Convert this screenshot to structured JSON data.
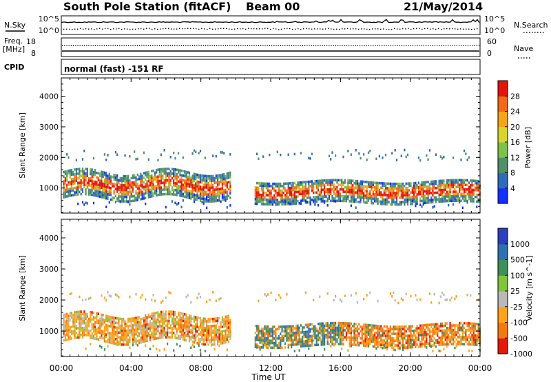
{
  "header": {
    "station": "South Pole Station (fitACF)",
    "beam": "Beam 00",
    "date": "21/May/2014"
  },
  "top_panels": {
    "nsky_label": "N.Sky",
    "nsky_ticks": [
      "10^5",
      "10^0"
    ],
    "nsearch_label": "N.Search",
    "nsearch_ticks": [
      "10^5",
      "10^0"
    ],
    "freq_label_line1": "Freq.",
    "freq_label_line2": "[MHz]",
    "freq_ticks": [
      "18",
      "8"
    ],
    "nave_label": "Nave",
    "nave_ticks": [
      "60",
      "0"
    ],
    "cpid_label": "CPID",
    "cpid_text": "normal (fast) -151 RF"
  },
  "chart_data": [
    {
      "type": "heatmap",
      "ylabel": "Slant Range [km]",
      "xlabel": "Time UT",
      "x_ticks": [
        "00:00",
        "04:00",
        "08:00",
        "12:00",
        "16:00",
        "20:00",
        "00:00"
      ],
      "y_ticks": [
        "1000",
        "2000",
        "3000",
        "4000"
      ],
      "xlim_hours": [
        0,
        24
      ],
      "ylim_km": [
        180,
        4600
      ],
      "colorbar_label": "Power [dB]",
      "colorbar_ticks": [
        "4",
        "8",
        "12",
        "16",
        "20",
        "24",
        "28"
      ],
      "colorbar_range": [
        0,
        32
      ],
      "colors": [
        "#1230ff",
        "#2f6cb8",
        "#4f8f6a",
        "#7ec24a",
        "#d8d62c",
        "#f5a51a",
        "#f26b14",
        "#e3160c"
      ]
    },
    {
      "type": "heatmap",
      "ylabel": "Slant Range [km]",
      "xlabel": "Time UT",
      "x_ticks": [
        "00:00",
        "04:00",
        "08:00",
        "12:00",
        "16:00",
        "20:00",
        "00:00"
      ],
      "y_ticks": [
        "1000",
        "2000",
        "3000",
        "4000"
      ],
      "xlim_hours": [
        0,
        24
      ],
      "ylim_km": [
        180,
        4600
      ],
      "colorbar_label": "Velocity [m s^-1]",
      "colorbar_ticks": [
        "1000",
        "500",
        "100",
        "25",
        "-25",
        "-100",
        "-500",
        "-1000"
      ],
      "colors": [
        "#2c3fbf",
        "#2f70b0",
        "#3f8f5a",
        "#7fc63a",
        "#b9b9b9",
        "#ffa31a",
        "#f27a12",
        "#e11a0c"
      ]
    }
  ]
}
